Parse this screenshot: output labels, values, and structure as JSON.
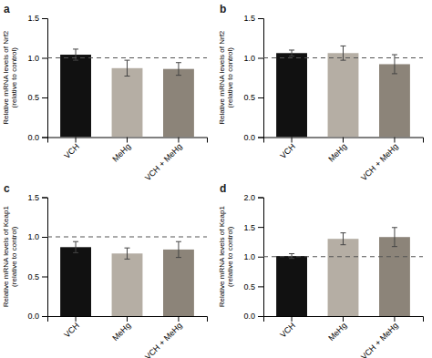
{
  "chart_data": [
    {
      "type": "bar",
      "title": "a",
      "ylabel": "Relative mRNA levels of Nrf2\n(relative to control)",
      "categories": [
        "VCH",
        "MeHg",
        "VCH + MeHg"
      ],
      "values": [
        1.04,
        0.87,
        0.86
      ],
      "errors": [
        0.07,
        0.1,
        0.08
      ],
      "colors": [
        "#111111",
        "#b5aea4",
        "#8c8479"
      ],
      "reference_y": 1.0,
      "ylim": [
        0,
        1.5
      ],
      "yticks": [
        {
          "value": 0,
          "label": "0.0"
        },
        0.5,
        {
          "value": 1,
          "label": "1.0"
        },
        1.5
      ]
    },
    {
      "type": "bar",
      "title": "b",
      "ylabel": "Relative mRNA levels of Nrf2\n(relative to control)",
      "categories": [
        "VCH",
        "MeHg",
        "VCH + MeHg"
      ],
      "values": [
        1.06,
        1.06,
        0.92
      ],
      "errors": [
        0.038,
        0.09,
        0.12
      ],
      "colors": [
        "#111111",
        "#b5aea4",
        "#8c8479"
      ],
      "reference_y": 1.0,
      "ylim": [
        0,
        1.5
      ],
      "yticks": [
        {
          "value": 0,
          "label": "0.0"
        },
        0.5,
        {
          "value": 1,
          "label": "1.0"
        },
        1.5
      ]
    },
    {
      "type": "bar",
      "title": "c",
      "ylabel": "Relative mRNA levels of Keap1\n(relative to control)",
      "categories": [
        "VCH",
        "MeHg",
        "VCH + MeHg"
      ],
      "values": [
        0.87,
        0.79,
        0.84
      ],
      "errors": [
        0.07,
        0.07,
        0.1
      ],
      "colors": [
        "#111111",
        "#b5aea4",
        "#8c8479"
      ],
      "reference_y": 1.0,
      "ylim": [
        0,
        1.5
      ],
      "yticks": [
        {
          "value": 0,
          "label": "0.0"
        },
        0.5,
        {
          "value": 1,
          "label": "1.0"
        },
        1.5
      ]
    },
    {
      "type": "bar",
      "title": "d",
      "ylabel": "Relative mRNA levels of Keap1\n(relative to control)",
      "categories": [
        "VCH",
        "MeHg",
        "VCH + MeHg"
      ],
      "values": [
        1.01,
        1.3,
        1.33
      ],
      "errors": [
        0.04,
        0.1,
        0.16
      ],
      "colors": [
        "#111111",
        "#b5aea4",
        "#8c8479"
      ],
      "reference_y": 1.0,
      "ylim": [
        0,
        2.0
      ],
      "yticks": [
        {
          "value": 0,
          "label": "0.0"
        },
        0.5,
        {
          "value": 1,
          "label": "1.0"
        },
        1.5,
        {
          "value": 2,
          "label": "2.0"
        }
      ]
    }
  ]
}
